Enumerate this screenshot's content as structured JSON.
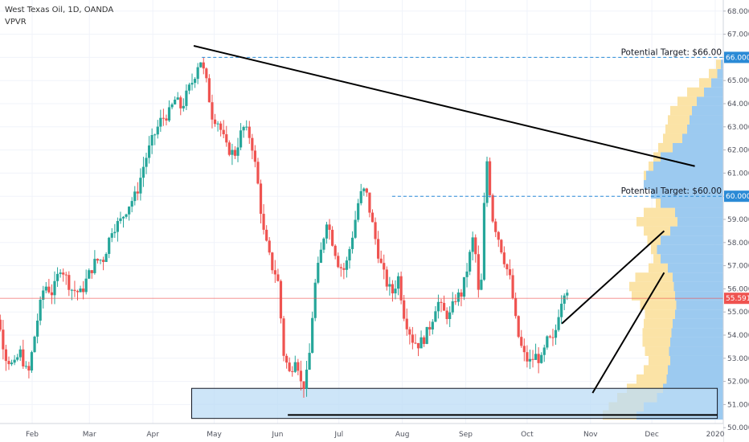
{
  "header": {
    "symbol_line": "West Texas Oil, 1D, OANDA",
    "indicator": "VPVR"
  },
  "colors": {
    "up": "#26a69a",
    "down": "#ef5350",
    "grid": "#f0f3fa",
    "vp_value_area": "#9ccaf0",
    "vp_outside": "#fbe3a6",
    "target_line": "#2a8ad6",
    "last_price": "#ef5350",
    "support_zone": "#bcdcf5"
  },
  "chart_data": {
    "type": "candlestick",
    "title": "West Texas Oil, 1D, OANDA",
    "ylim": [
      49.8,
      68.3
    ],
    "y_ticks": [
      "68.000",
      "67.000",
      "66.000",
      "65.000",
      "64.000",
      "63.000",
      "62.000",
      "61.000",
      "60.000",
      "59.000",
      "58.000",
      "57.000",
      "56.000",
      "55.000",
      "54.000",
      "53.000",
      "52.000",
      "51.000",
      "50.000"
    ],
    "x_ticks": [
      "Feb",
      "Mar",
      "Apr",
      "May",
      "Jun",
      "Jul",
      "Aug",
      "Sep",
      "Oct",
      "Nov",
      "Dec",
      "2020"
    ],
    "x_tick_days": [
      31,
      59,
      90,
      120,
      151,
      181,
      212,
      243,
      273,
      304,
      334,
      365
    ],
    "x_range_days": [
      7,
      370
    ],
    "last_price": {
      "value": 55.59,
      "label": "55.591"
    },
    "targets": [
      {
        "value": 66.0,
        "text": "Potential Target: $66.00",
        "label": "66.000",
        "from_day": 114
      },
      {
        "value": 60.0,
        "text": "Potential Target: $60.00",
        "label": "60.000",
        "from_day": 207
      }
    ],
    "support_zone": {
      "from": 50.4,
      "to": 51.7,
      "x_from_day": 109,
      "x_to_day": 366
    },
    "trendlines": [
      {
        "name": "descending-resistance",
        "points": [
          [
            110,
            66.5
          ],
          [
            355,
            61.3
          ]
        ]
      },
      {
        "name": "channel-upper",
        "points": [
          [
            290,
            54.5
          ],
          [
            340,
            58.5
          ]
        ]
      },
      {
        "name": "channel-lower",
        "points": [
          [
            305,
            51.5
          ],
          [
            340,
            56.7
          ]
        ]
      },
      {
        "name": "support-base",
        "points": [
          [
            156,
            50.55
          ],
          [
            366,
            50.55
          ]
        ]
      }
    ],
    "series": [
      {
        "name": "price",
        "close_path": [
          [
            7,
            52.3
          ],
          [
            10,
            53.4
          ],
          [
            14,
            54.8
          ],
          [
            18,
            53.1
          ],
          [
            22,
            52.6
          ],
          [
            25,
            53.3
          ],
          [
            29,
            52.2
          ],
          [
            33,
            54.4
          ],
          [
            37,
            56.2
          ],
          [
            41,
            55.8
          ],
          [
            45,
            57.0
          ],
          [
            50,
            56.0
          ],
          [
            55,
            55.8
          ],
          [
            58,
            56.5
          ],
          [
            62,
            57.2
          ],
          [
            66,
            57.3
          ],
          [
            70,
            58.6
          ],
          [
            74,
            58.9
          ],
          [
            78,
            59.6
          ],
          [
            82,
            60.1
          ],
          [
            86,
            61.5
          ],
          [
            90,
            62.5
          ],
          [
            94,
            63.3
          ],
          [
            98,
            63.6
          ],
          [
            101,
            64.2
          ],
          [
            104,
            63.8
          ],
          [
            107,
            64.5
          ],
          [
            110,
            65.1
          ],
          [
            113,
            66.0
          ],
          [
            116,
            65.0
          ],
          [
            119,
            63.5
          ],
          [
            122,
            63.2
          ],
          [
            126,
            62.1
          ],
          [
            130,
            61.8
          ],
          [
            134,
            63.0
          ],
          [
            138,
            62.5
          ],
          [
            141,
            60.8
          ],
          [
            144,
            58.5
          ],
          [
            148,
            57.0
          ],
          [
            151,
            56.5
          ],
          [
            154,
            53.2
          ],
          [
            157,
            52.3
          ],
          [
            160,
            53.2
          ],
          [
            163,
            51.6
          ],
          [
            166,
            52.5
          ],
          [
            169,
            56.0
          ],
          [
            172,
            57.5
          ],
          [
            175,
            59.0
          ],
          [
            178,
            58.0
          ],
          [
            181,
            57.0
          ],
          [
            184,
            56.8
          ],
          [
            188,
            58.5
          ],
          [
            191,
            60.0
          ],
          [
            194,
            60.3
          ],
          [
            198,
            58.5
          ],
          [
            201,
            57.2
          ],
          [
            204,
            56.3
          ],
          [
            207,
            55.8
          ],
          [
            210,
            56.5
          ],
          [
            213,
            54.8
          ],
          [
            217,
            53.8
          ],
          [
            220,
            53.6
          ],
          [
            223,
            53.9
          ],
          [
            226,
            54.5
          ],
          [
            229,
            55.5
          ],
          [
            232,
            55.0
          ],
          [
            235,
            54.8
          ],
          [
            238,
            55.6
          ],
          [
            241,
            55.8
          ],
          [
            244,
            57.0
          ],
          [
            247,
            58.4
          ],
          [
            250,
            54.9
          ],
          [
            253,
            61.9
          ],
          [
            256,
            59.1
          ],
          [
            259,
            58.2
          ],
          [
            262,
            57.2
          ],
          [
            265,
            56.3
          ],
          [
            268,
            54.2
          ],
          [
            271,
            53.2
          ],
          [
            274,
            52.8
          ],
          [
            277,
            53.1
          ],
          [
            280,
            52.9
          ],
          [
            283,
            53.8
          ],
          [
            286,
            53.7
          ],
          [
            289,
            55.3
          ],
          [
            292,
            56.2
          ],
          [
            294,
            55.6
          ]
        ]
      }
    ],
    "volume_profile": {
      "rows": [
        [
          50.55,
          0.72,
          1.0
        ],
        [
          50.9,
          0.66,
          0.95
        ],
        [
          51.3,
          0.55,
          0.88
        ],
        [
          51.7,
          0.5,
          0.8
        ],
        [
          52.1,
          0.47,
          0.72
        ],
        [
          52.5,
          0.46,
          0.66
        ],
        [
          52.9,
          0.44,
          0.62
        ],
        [
          53.3,
          0.45,
          0.65
        ],
        [
          53.7,
          0.44,
          0.67
        ],
        [
          54.1,
          0.43,
          0.67
        ],
        [
          54.5,
          0.42,
          0.66
        ],
        [
          54.9,
          0.4,
          0.65
        ],
        [
          55.3,
          0.39,
          0.69
        ],
        [
          55.7,
          0.4,
          0.76
        ],
        [
          56.1,
          0.41,
          0.78
        ],
        [
          56.5,
          0.42,
          0.73
        ],
        [
          56.9,
          0.46,
          0.62
        ],
        [
          57.3,
          0.52,
          0.58
        ],
        [
          57.7,
          0.55,
          0.6
        ],
        [
          58.1,
          0.52,
          0.63
        ],
        [
          58.5,
          0.44,
          0.66
        ],
        [
          58.9,
          0.38,
          0.72
        ],
        [
          59.3,
          0.4,
          0.66
        ],
        [
          59.7,
          0.52,
          0.56
        ],
        [
          60.1,
          0.6,
          0.6
        ],
        [
          60.5,
          0.66,
          0.63
        ],
        [
          60.9,
          0.64,
          0.66
        ],
        [
          61.3,
          0.58,
          0.62
        ],
        [
          61.7,
          0.52,
          0.58
        ],
        [
          62.1,
          0.42,
          0.54
        ],
        [
          62.5,
          0.34,
          0.5
        ],
        [
          62.9,
          0.3,
          0.48
        ],
        [
          63.3,
          0.28,
          0.46
        ],
        [
          63.7,
          0.26,
          0.44
        ],
        [
          64.1,
          0.22,
          0.38
        ],
        [
          64.5,
          0.16,
          0.3
        ],
        [
          64.9,
          0.1,
          0.2
        ],
        [
          65.3,
          0.05,
          0.12
        ],
        [
          65.7,
          0.02,
          0.06
        ]
      ]
    }
  }
}
